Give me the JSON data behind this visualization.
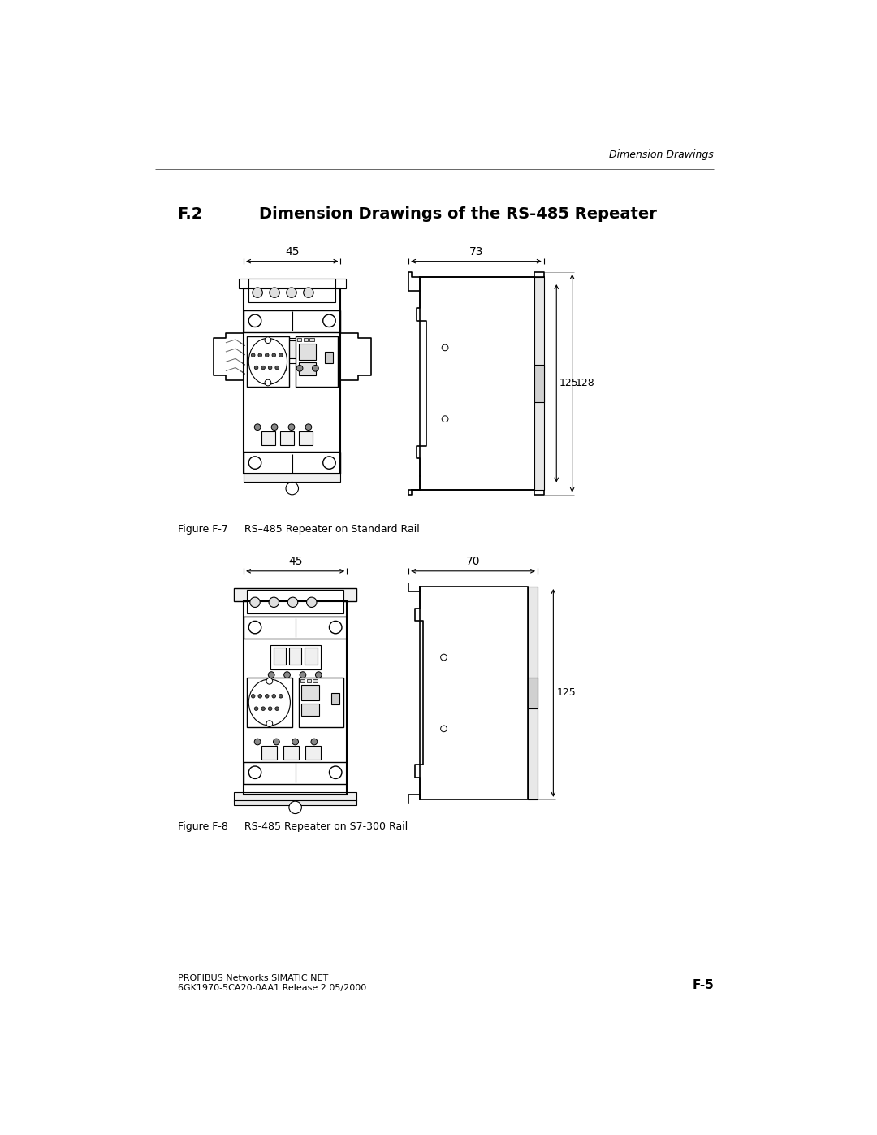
{
  "page_title": "Dimension Drawings",
  "section_title": "F.2",
  "section_title_text": "Dimension Drawings of the RS-485 Repeater",
  "fig7_caption": "Figure F-7     RS–485 Repeater on Standard Rail",
  "fig8_caption": "Figure F-8     RS-485 Repeater on S7-300 Rail",
  "footer_left_line1": "PROFIBUS Networks SIMATIC NET",
  "footer_left_line2": "6GK1970-5CA20-0AA1 Release 2 05/2000",
  "footer_right": "F-5",
  "bg_color": "#ffffff",
  "dim1_width": "45",
  "dim1_side": "73",
  "dim1_height_outer": "128",
  "dim1_height_inner": "125",
  "dim2_width": "45",
  "dim2_side": "70",
  "dim2_height": "125"
}
